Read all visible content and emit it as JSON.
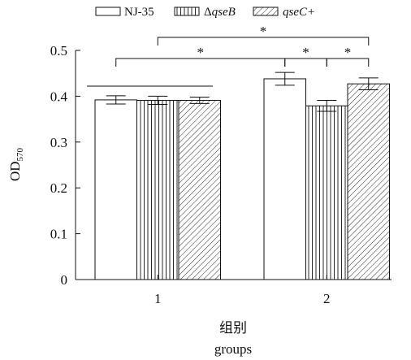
{
  "chart_data": {
    "type": "bar",
    "categories": [
      "1",
      "2"
    ],
    "series": [
      {
        "name": "NJ-35",
        "pattern": "none",
        "values": [
          0.392,
          0.438
        ],
        "errors": [
          0.009,
          0.014
        ]
      },
      {
        "name": "qseB",
        "prefix": "Δ",
        "italic": true,
        "pattern": "vertical-lines",
        "values": [
          0.391,
          0.379
        ],
        "errors": [
          0.009,
          0.012
        ]
      },
      {
        "name": "qseC+",
        "italic": true,
        "pattern": "diagonal-lines",
        "values": [
          0.391,
          0.427
        ],
        "errors": [
          0.007,
          0.013
        ]
      }
    ],
    "xlabel_zh": "组别",
    "xlabel_en": "groups",
    "ylabel": "OD",
    "ylabel_sub": "570",
    "ylim": [
      0,
      0.5
    ],
    "yticks": [
      {
        "value": 0,
        "label": "0"
      },
      {
        "value": 0.1,
        "label": "0.1"
      },
      {
        "value": 0.2,
        "label": "0.2"
      },
      {
        "value": 0.3,
        "label": "0.3"
      },
      {
        "value": 0.4,
        "label": "0.4"
      },
      {
        "value": 0.5,
        "label": "0.5"
      }
    ],
    "legend_position": "top",
    "grid": false,
    "significance": [
      {
        "from": [
          0,
          0
        ],
        "to": [
          1,
          0
        ],
        "label": "*"
      },
      {
        "from": [
          1,
          0
        ],
        "to": [
          1,
          1
        ],
        "label": "*"
      },
      {
        "from": [
          1,
          1
        ],
        "to": [
          1,
          2
        ],
        "label": "*"
      },
      {
        "from": [
          0,
          1
        ],
        "to": [
          1,
          2
        ],
        "label": "*"
      }
    ],
    "colors": {
      "ink": "#111111",
      "fill": "#ffffff"
    }
  }
}
